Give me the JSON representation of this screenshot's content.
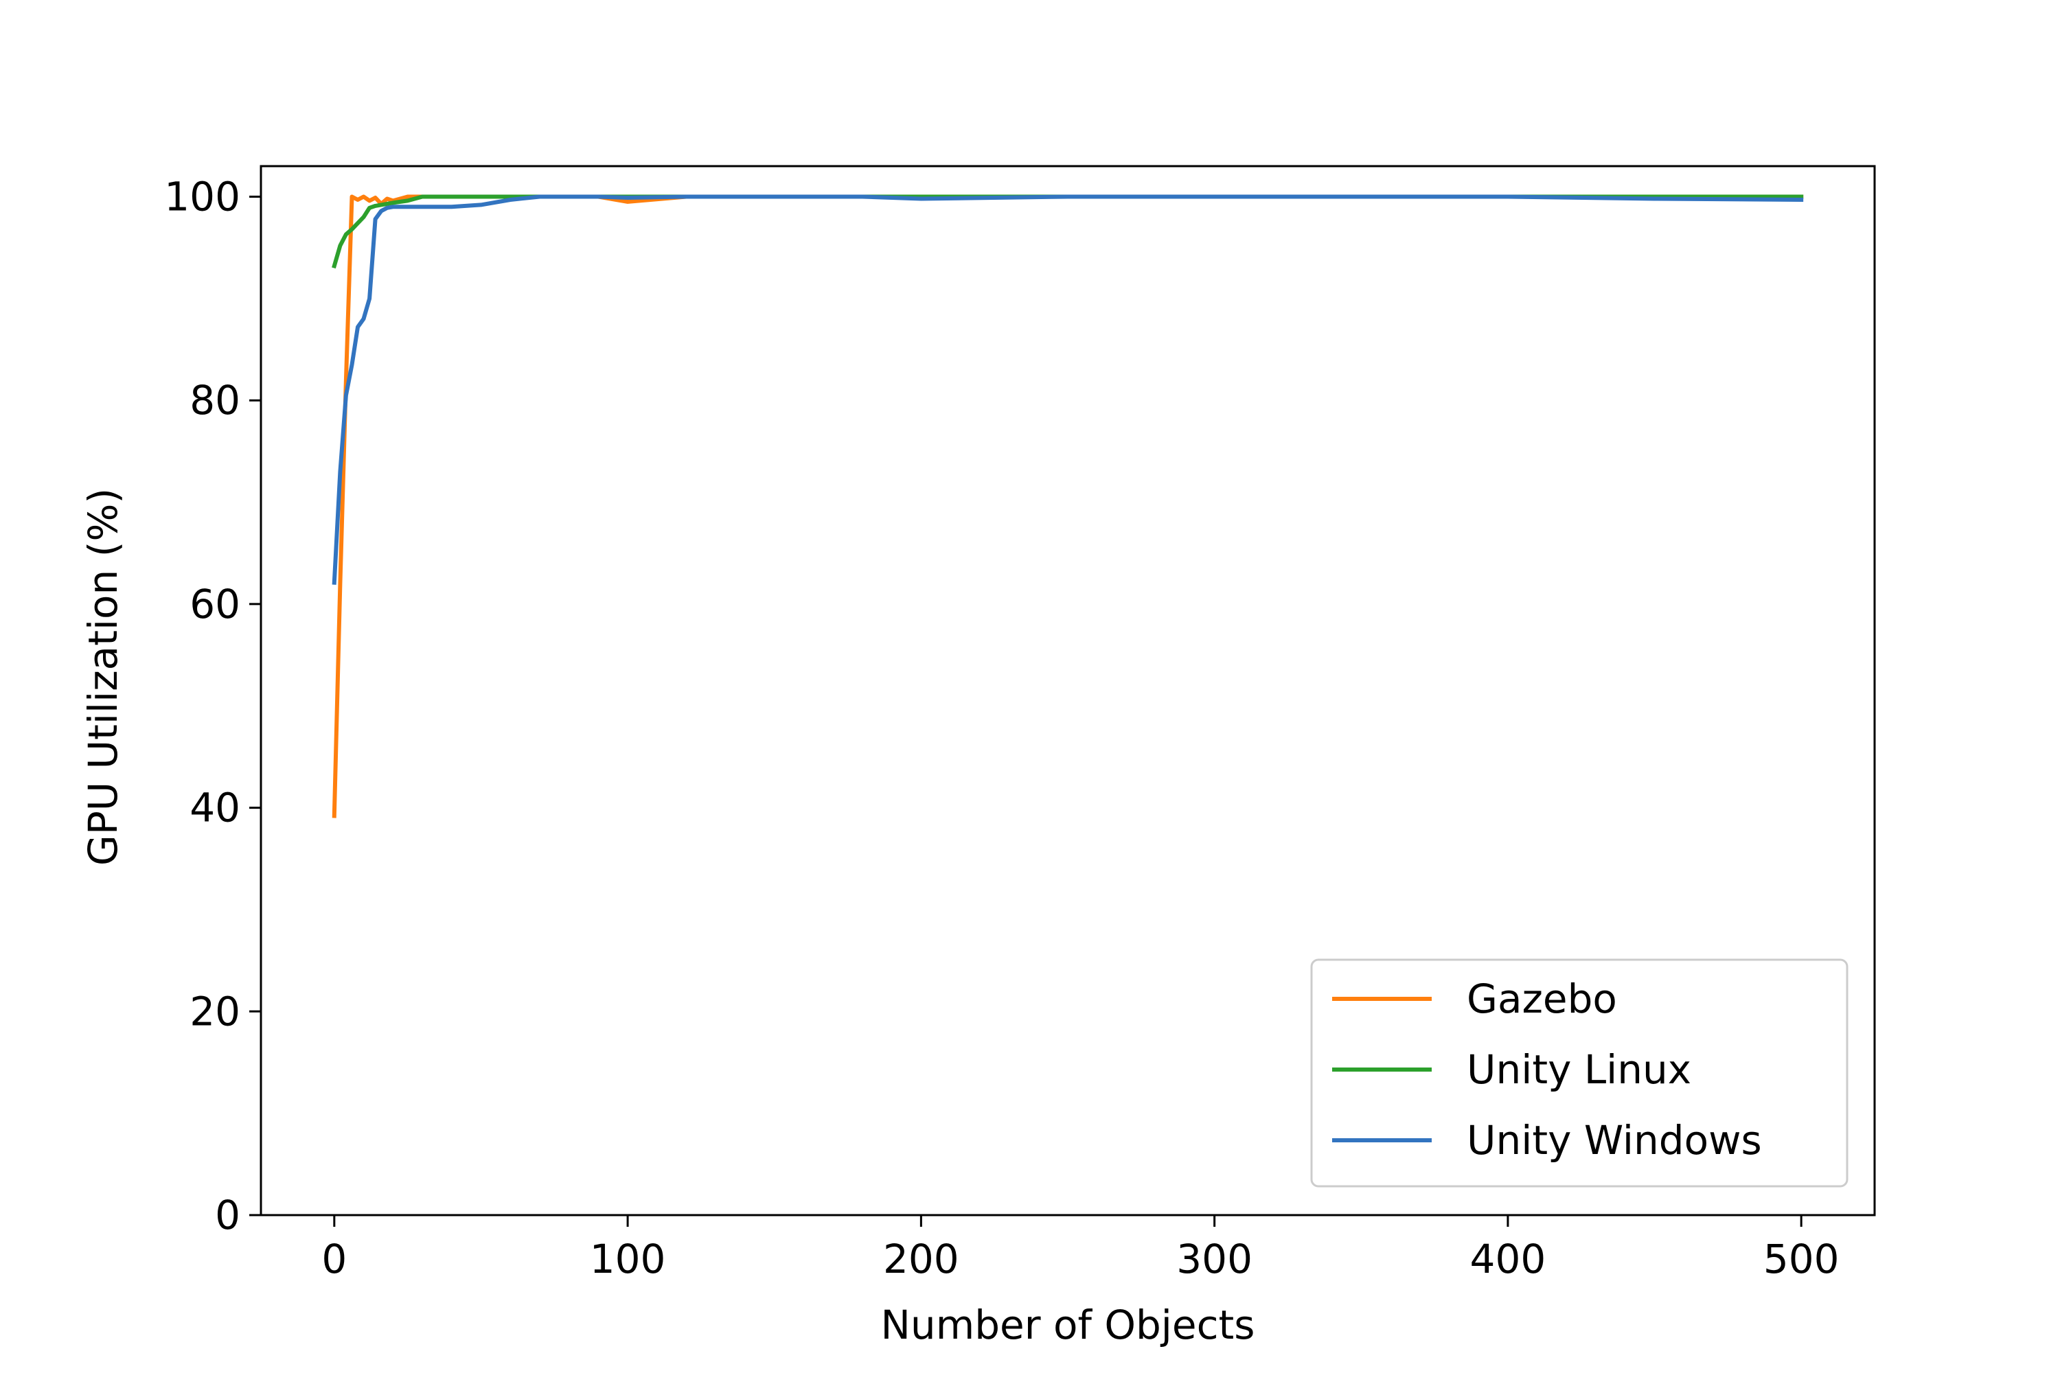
{
  "chart_data": {
    "type": "line",
    "title": "",
    "xlabel": "Number of Objects",
    "ylabel": "GPU Utilization (%)",
    "xlim": [
      -25,
      525
    ],
    "ylim": [
      0,
      103
    ],
    "x_ticks": [
      0,
      100,
      200,
      300,
      400,
      500
    ],
    "y_ticks": [
      0,
      20,
      40,
      60,
      80,
      100
    ],
    "grid": false,
    "legend_position": "lower right",
    "series": [
      {
        "name": "Gazebo",
        "color": "#ff7f0e",
        "x": [
          0,
          2,
          4,
          6,
          8,
          10,
          12,
          14,
          16,
          18,
          20,
          25,
          30,
          40,
          50,
          60,
          70,
          80,
          90,
          100,
          120,
          150,
          200,
          250,
          300,
          350,
          400,
          450,
          500
        ],
        "y": [
          39.2,
          62,
          82,
          100,
          99.7,
          100,
          99.6,
          99.9,
          99.3,
          99.8,
          99.6,
          100,
          100,
          100,
          100,
          100,
          100,
          100,
          100,
          99.5,
          100,
          100,
          100,
          100,
          100,
          100,
          100,
          100,
          100
        ]
      },
      {
        "name": "Unity Linux",
        "color": "#2ca02c",
        "x": [
          0,
          2,
          4,
          6,
          8,
          10,
          12,
          14,
          16,
          18,
          20,
          25,
          30,
          40,
          50,
          60,
          70,
          80,
          100,
          150,
          200,
          250,
          300,
          350,
          400,
          450,
          500
        ],
        "y": [
          93.2,
          95.2,
          96.3,
          96.8,
          97.4,
          98,
          98.9,
          99.1,
          99.2,
          99.3,
          99.4,
          99.6,
          100,
          100,
          100,
          100,
          100,
          100,
          100,
          100,
          100,
          100,
          100,
          100,
          100,
          100,
          100
        ]
      },
      {
        "name": "Unity Windows",
        "color": "#3274c0",
        "x": [
          0,
          2,
          4,
          6,
          8,
          10,
          12,
          14,
          16,
          18,
          20,
          25,
          30,
          40,
          50,
          60,
          70,
          80,
          90,
          100,
          120,
          150,
          180,
          200,
          250,
          300,
          350,
          400,
          450,
          500
        ],
        "y": [
          62.1,
          73,
          80.5,
          83.5,
          87.2,
          88,
          90,
          97.8,
          98.6,
          98.9,
          99,
          99,
          99,
          99,
          99.2,
          99.7,
          100,
          100,
          100,
          99.9,
          100,
          100,
          100,
          99.8,
          100,
          100,
          100,
          100,
          99.8,
          99.7
        ]
      }
    ]
  }
}
